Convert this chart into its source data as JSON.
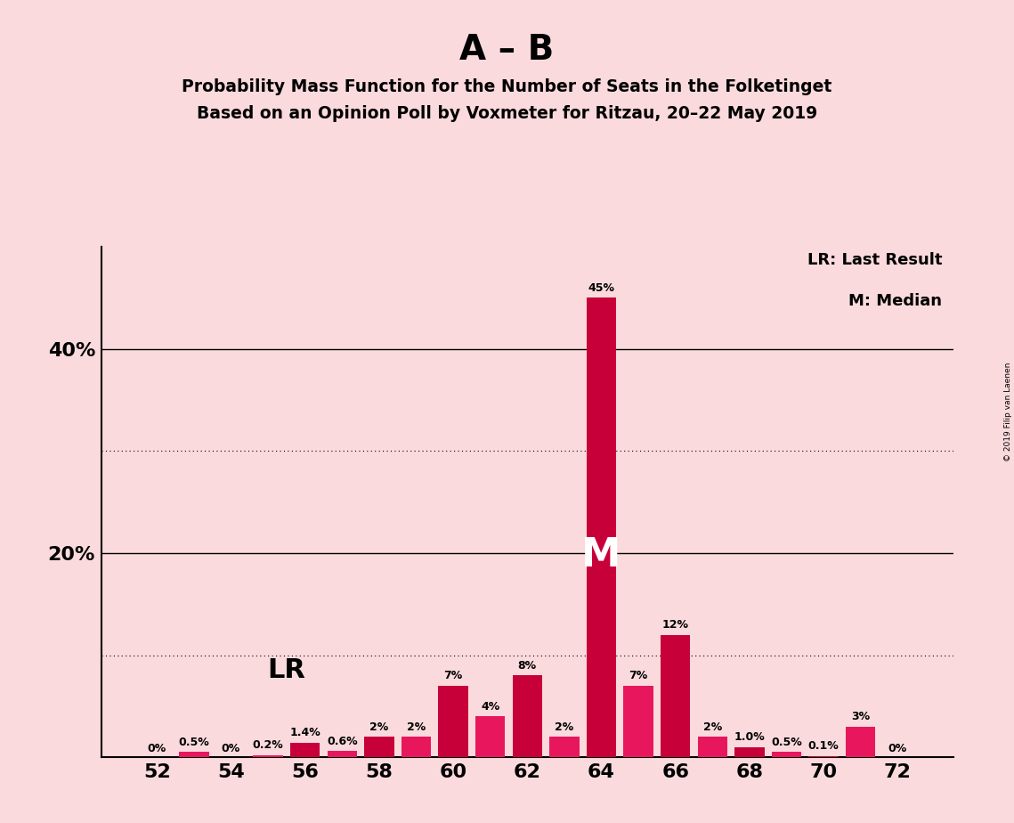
{
  "title_main": "A – B",
  "title_sub1": "Probability Mass Function for the Number of Seats in the Folketinget",
  "title_sub2": "Based on an Opinion Poll by Voxmeter for Ritzau, 20–22 May 2019",
  "copyright": "© 2019 Filip van Laenen",
  "seats": [
    52,
    53,
    54,
    55,
    56,
    57,
    58,
    59,
    60,
    61,
    62,
    63,
    64,
    65,
    66,
    67,
    68,
    69,
    70,
    71,
    72
  ],
  "values": [
    0.0,
    0.5,
    0.0,
    0.2,
    1.4,
    0.6,
    2.0,
    2.0,
    7.0,
    4.0,
    8.0,
    2.0,
    45.0,
    7.0,
    12.0,
    2.0,
    1.0,
    0.5,
    0.1,
    3.0,
    0.0
  ],
  "labels": [
    "0%",
    "0.5%",
    "0%",
    "0.2%",
    "1.4%",
    "0.6%",
    "2%",
    "2%",
    "7%",
    "4%",
    "8%",
    "2%",
    "45%",
    "7%",
    "12%",
    "2%",
    "1.0%",
    "0.5%",
    "0.1%",
    "3%",
    "0%"
  ],
  "background_color": "#FADADD",
  "ylim_max": 50,
  "median_seat": 64,
  "lr_seat": 57,
  "legend_lr": "LR: Last Result",
  "legend_m": "M: Median",
  "color_red": "#C8003A",
  "color_pink": "#E8175D",
  "color_dark_red": "#C8003A",
  "color_magenta": "#E8175D"
}
